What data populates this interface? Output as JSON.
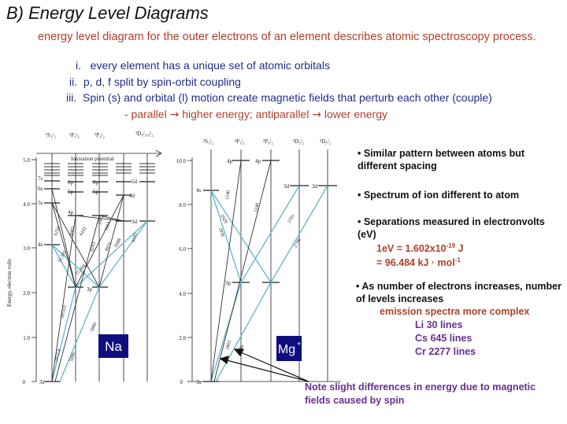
{
  "title": "B) Energy Level Diagrams",
  "intro": "energy level diagram for the outer electrons of an element describes atomic spectroscopy process.",
  "list": [
    {
      "num": "i.",
      "text": "every element has a unique set of atomic orbitals"
    },
    {
      "num": "ii.",
      "text": "p, d, f split by spin-orbit coupling"
    },
    {
      "num": "iii.",
      "text": "Spin (s) and orbital (l) motion create magnetic fields that perturb each other (couple)"
    }
  ],
  "sub": {
    "dash": "- parallel",
    "a": "higher energy; antiparallel",
    "b": "lower energy"
  },
  "bullets": {
    "b1": "• Similar pattern between atoms but different spacing",
    "b2": "• Spectrum of ion different to atom",
    "b3": "• Separations measured in electronvolts (eV)",
    "ev1": "1eV = 1.602x10",
    "ev1_sup": "-19",
    "ev1_unit": " J",
    "ev2": "= 96.484 kJ · mol",
    "ev2_sup": "-1",
    "b4": "• As number of electrons increases, number of levels increases",
    "emission": "emission spectra more complex",
    "lines": [
      "Li 30 lines",
      "Cs 645 lines",
      "Cr 2277 lines"
    ]
  },
  "note": "Note slight differences in energy due to magnetic fields caused by spin",
  "colors": {
    "title": "#111111",
    "intro": "#b0412a",
    "list": "#1f2f86",
    "lines": "#6a2d8e",
    "cyan": "#5bb8cf",
    "badge": "#0e0e80"
  },
  "na": {
    "badge": "Na",
    "ylabel": "Energy, electron volts",
    "yticks": [
      "0",
      "1.0",
      "2.0",
      "3.0",
      "4.0",
      "5.0"
    ],
    "columns": [
      "2S1/2",
      "2P1/2",
      "2P3/2",
      "2D3/2,5/2"
    ],
    "ionization": "Ionization potential",
    "levels": [
      "3s",
      "3p",
      "4s",
      "3d",
      "5s",
      "4p",
      "4d",
      "6s",
      "5p",
      "5d",
      "7s",
      "6p",
      "6p"
    ],
    "transitions": [
      "2852.8",
      "2853.0",
      "5896",
      "5890",
      "11,381",
      "11,404",
      "6154",
      "6161",
      "3303",
      "3302",
      "8183",
      "8195",
      "5688",
      "4983",
      "4979"
    ]
  },
  "mg": {
    "badge": "Mg",
    "badge_sup": "+",
    "yticks": [
      "0",
      "2.0",
      "4.0",
      "6.0",
      "8.0",
      "10.0"
    ],
    "columns": [
      "2S1/2",
      "2P1/2",
      "2P3/2",
      "2D3/2",
      "2D5/2"
    ],
    "levels": [
      "3s",
      "3p",
      "4s",
      "4p",
      "3d"
    ],
    "transitions": [
      "2803",
      "2796",
      "2936",
      "2929",
      "1240",
      "1240",
      "2791",
      "2798"
    ]
  }
}
